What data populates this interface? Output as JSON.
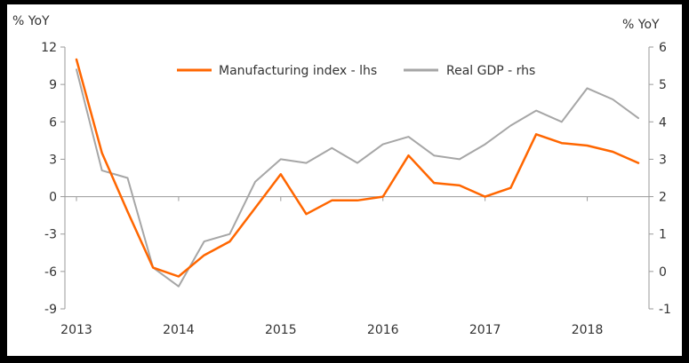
{
  "chart_data": {
    "type": "line",
    "title": "",
    "left_axis_unit": "% YoY",
    "right_axis_unit": "% YoY",
    "left_ylim": [
      -9,
      12
    ],
    "right_ylim": [
      -1,
      6
    ],
    "left_ticks": [
      "12",
      "9",
      "6",
      "3",
      "0",
      "-3",
      "-6",
      "-9"
    ],
    "left_tick_values": [
      12,
      9,
      6,
      3,
      0,
      -3,
      -6,
      -9
    ],
    "right_ticks": [
      "6",
      "5",
      "4",
      "3",
      "2",
      "1",
      "0",
      "-1"
    ],
    "right_tick_values": [
      6,
      5,
      4,
      3,
      2,
      1,
      0,
      -1
    ],
    "x_ticks": [
      "2013",
      "2014",
      "2015",
      "2016",
      "2017",
      "2018"
    ],
    "x_tick_values": [
      2013,
      2014,
      2015,
      2016,
      2017,
      2018
    ],
    "xlim": [
      2013,
      2018.5
    ],
    "grid": false,
    "legend_position": "top-center",
    "series": [
      {
        "name": "Manufacturing index - lhs",
        "axis": "left",
        "color": "#ff6600",
        "x": [
          2013,
          2013.25,
          2013.5,
          2013.75,
          2014,
          2014.25,
          2014.5,
          2014.75,
          2015,
          2015.25,
          2015.5,
          2015.75,
          2016,
          2016.25,
          2016.5,
          2016.75,
          2017,
          2017.25,
          2017.5,
          2017.75,
          2018,
          2018.25,
          2018.5
        ],
        "values": [
          11.0,
          3.5,
          -1.2,
          -5.7,
          -6.4,
          -4.7,
          -3.6,
          -0.9,
          1.8,
          -1.4,
          -0.3,
          -0.3,
          0.0,
          3.3,
          1.1,
          0.9,
          0.0,
          0.7,
          5.0,
          4.3,
          4.1,
          3.6,
          2.7
        ]
      },
      {
        "name": "Real GDP - rhs",
        "axis": "right",
        "color": "#a6a6a6",
        "x": [
          2013,
          2013.25,
          2013.5,
          2013.75,
          2014,
          2014.25,
          2014.5,
          2014.75,
          2015,
          2015.25,
          2015.5,
          2015.75,
          2016,
          2016.25,
          2016.5,
          2016.75,
          2017,
          2017.25,
          2017.5,
          2017.75,
          2018,
          2018.25,
          2018.5
        ],
        "values": [
          5.4,
          2.7,
          2.5,
          0.1,
          -0.4,
          0.8,
          1.0,
          2.4,
          3.0,
          2.9,
          3.3,
          2.9,
          3.4,
          3.6,
          3.1,
          3.0,
          3.4,
          3.9,
          4.3,
          4.0,
          4.9,
          4.6,
          4.1
        ]
      }
    ]
  }
}
